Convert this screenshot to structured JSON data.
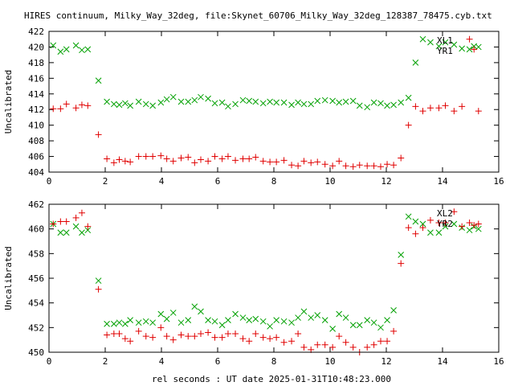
{
  "title": "HIRES continuum, Milky_Way_32deg, file:Skynet_60706_Milky_Way_32deg_128387_78475.cyb.txt",
  "xlabel": "rel seconds : UT date 2025-01-31T10:48:23.000",
  "colors": {
    "XL": "#00a000",
    "YR": "#e00000",
    "axis": "#000000"
  },
  "chart_data": [
    {
      "type": "scatter",
      "ylabel": "Uncalibrated",
      "xlim": [
        0,
        16
      ],
      "ylim": [
        404,
        422
      ],
      "xticks": [
        0,
        2,
        4,
        6,
        8,
        10,
        12,
        14,
        16
      ],
      "yticks": [
        404,
        406,
        408,
        410,
        412,
        414,
        416,
        418,
        420,
        422
      ],
      "legend": "top-right",
      "series": [
        {
          "name": "XL1",
          "marker": "x",
          "color": "#00a000",
          "x": [
            0.15,
            0.41,
            0.62,
            0.96,
            1.17,
            1.38,
            1.76,
            2.06,
            2.31,
            2.5,
            2.71,
            2.89,
            3.19,
            3.45,
            3.69,
            3.98,
            4.19,
            4.42,
            4.7,
            4.95,
            5.18,
            5.4,
            5.66,
            5.9,
            6.16,
            6.37,
            6.63,
            6.9,
            7.12,
            7.35,
            7.62,
            7.86,
            8.09,
            8.36,
            8.63,
            8.86,
            9.07,
            9.32,
            9.55,
            9.82,
            10.09,
            10.32,
            10.56,
            10.82,
            11.05,
            11.32,
            11.56,
            11.8,
            12.03,
            12.26,
            12.52,
            12.79,
            13.04,
            13.3,
            13.57,
            13.87,
            14.1,
            14.41,
            14.69,
            14.96,
            15.12,
            15.28
          ],
          "y": [
            420.2,
            419.4,
            419.7,
            420.2,
            419.6,
            419.7,
            415.7,
            413.0,
            412.7,
            412.6,
            412.8,
            412.5,
            413.0,
            412.7,
            412.5,
            412.9,
            413.3,
            413.6,
            413.0,
            413.0,
            413.2,
            413.6,
            413.4,
            412.8,
            412.9,
            412.4,
            412.7,
            413.2,
            413.1,
            413.0,
            412.8,
            413.0,
            412.9,
            412.9,
            412.6,
            412.9,
            412.7,
            412.7,
            413.1,
            413.2,
            413.1,
            412.9,
            413.0,
            413.1,
            412.5,
            412.3,
            412.9,
            412.8,
            412.5,
            412.6,
            412.9,
            413.5,
            418.0,
            421.0,
            420.6,
            420.1,
            420.6,
            420.3,
            419.8,
            419.7,
            420.1,
            420.0
          ]
        },
        {
          "name": "YR1",
          "marker": "+",
          "color": "#e00000",
          "x": [
            0.15,
            0.41,
            0.62,
            0.96,
            1.17,
            1.38,
            1.76,
            2.06,
            2.31,
            2.5,
            2.71,
            2.89,
            3.19,
            3.45,
            3.69,
            3.98,
            4.19,
            4.42,
            4.7,
            4.95,
            5.18,
            5.4,
            5.66,
            5.9,
            6.16,
            6.37,
            6.63,
            6.9,
            7.12,
            7.35,
            7.62,
            7.86,
            8.09,
            8.36,
            8.63,
            8.86,
            9.07,
            9.32,
            9.55,
            9.82,
            10.09,
            10.32,
            10.56,
            10.82,
            11.05,
            11.32,
            11.56,
            11.8,
            12.03,
            12.26,
            12.52,
            12.79,
            13.04,
            13.3,
            13.57,
            13.87,
            14.1,
            14.41,
            14.69,
            14.96,
            15.12,
            15.28
          ],
          "y": [
            412.1,
            412.1,
            412.7,
            412.2,
            412.6,
            412.5,
            408.8,
            405.7,
            405.2,
            405.6,
            405.4,
            405.3,
            406.0,
            406.0,
            406.0,
            406.1,
            405.7,
            405.4,
            405.8,
            405.9,
            405.2,
            405.6,
            405.4,
            406.0,
            405.7,
            406.0,
            405.5,
            405.7,
            405.7,
            405.9,
            405.4,
            405.3,
            405.3,
            405.5,
            404.9,
            404.8,
            405.4,
            405.2,
            405.3,
            405.0,
            404.8,
            405.4,
            404.8,
            404.7,
            404.9,
            404.8,
            404.8,
            404.7,
            405.0,
            404.9,
            405.8,
            410.0,
            412.4,
            411.8,
            412.2,
            412.2,
            412.5,
            411.8,
            412.4,
            421.0,
            419.7,
            411.8
          ]
        }
      ]
    },
    {
      "type": "scatter",
      "ylabel": "Uncalibrated",
      "xlim": [
        0,
        16
      ],
      "ylim": [
        450,
        462
      ],
      "xticks": [
        0,
        2,
        4,
        6,
        8,
        10,
        12,
        14,
        16
      ],
      "yticks": [
        450,
        452,
        454,
        456,
        458,
        460,
        462
      ],
      "legend": "top-right",
      "series": [
        {
          "name": "XL2",
          "marker": "x",
          "color": "#00a000",
          "x": [
            0.15,
            0.41,
            0.62,
            0.96,
            1.17,
            1.38,
            1.76,
            2.06,
            2.31,
            2.5,
            2.71,
            2.89,
            3.19,
            3.45,
            3.69,
            3.98,
            4.19,
            4.42,
            4.7,
            4.95,
            5.18,
            5.4,
            5.66,
            5.9,
            6.16,
            6.37,
            6.63,
            6.9,
            7.12,
            7.35,
            7.62,
            7.86,
            8.09,
            8.36,
            8.63,
            8.86,
            9.07,
            9.32,
            9.55,
            9.82,
            10.09,
            10.32,
            10.56,
            10.82,
            11.05,
            11.32,
            11.56,
            11.8,
            12.03,
            12.26,
            12.52,
            12.79,
            13.04,
            13.3,
            13.57,
            13.87,
            14.1,
            14.41,
            14.69,
            14.96,
            15.12,
            15.28
          ],
          "y": [
            460.4,
            459.7,
            459.7,
            460.2,
            459.7,
            459.9,
            455.8,
            452.3,
            452.3,
            452.4,
            452.3,
            452.6,
            452.4,
            452.5,
            452.4,
            453.1,
            452.7,
            453.2,
            452.4,
            452.6,
            453.7,
            453.3,
            452.6,
            452.5,
            452.2,
            452.6,
            453.1,
            452.8,
            452.6,
            452.7,
            452.5,
            452.1,
            452.6,
            452.5,
            452.4,
            452.8,
            453.3,
            452.8,
            453.0,
            452.6,
            451.9,
            453.1,
            452.8,
            452.2,
            452.2,
            452.6,
            452.4,
            452.0,
            452.6,
            453.4,
            457.9,
            461.0,
            460.6,
            460.4,
            459.7,
            459.7,
            460.2,
            460.4,
            460.1,
            459.9,
            460.2,
            460.0
          ]
        },
        {
          "name": "YR2",
          "marker": "+",
          "color": "#e00000",
          "x": [
            0.15,
            0.41,
            0.62,
            0.96,
            1.17,
            1.38,
            1.76,
            2.06,
            2.31,
            2.5,
            2.71,
            2.89,
            3.19,
            3.45,
            3.69,
            3.98,
            4.19,
            4.42,
            4.7,
            4.95,
            5.18,
            5.4,
            5.66,
            5.9,
            6.16,
            6.37,
            6.63,
            6.9,
            7.12,
            7.35,
            7.62,
            7.86,
            8.09,
            8.36,
            8.63,
            8.86,
            9.07,
            9.32,
            9.55,
            9.82,
            10.09,
            10.32,
            10.56,
            10.82,
            11.05,
            11.32,
            11.56,
            11.8,
            12.03,
            12.26,
            12.52,
            12.79,
            13.04,
            13.3,
            13.57,
            13.87,
            14.1,
            14.41,
            14.69,
            14.96,
            15.12,
            15.28
          ],
          "y": [
            460.4,
            460.6,
            460.6,
            460.9,
            461.3,
            460.2,
            455.1,
            451.4,
            451.5,
            451.5,
            451.1,
            450.9,
            451.7,
            451.3,
            451.2,
            452.0,
            451.3,
            451.0,
            451.4,
            451.3,
            451.3,
            451.5,
            451.6,
            451.2,
            451.2,
            451.5,
            451.5,
            451.1,
            450.9,
            451.5,
            451.2,
            451.1,
            451.2,
            450.8,
            450.9,
            451.5,
            450.4,
            450.2,
            450.6,
            450.6,
            450.4,
            451.3,
            450.8,
            450.4,
            450.0,
            450.4,
            450.6,
            450.9,
            450.9,
            451.7,
            457.2,
            460.1,
            459.6,
            460.1,
            460.7,
            460.5,
            460.5,
            461.4,
            460.2,
            460.5,
            460.3,
            460.4
          ]
        }
      ]
    }
  ]
}
